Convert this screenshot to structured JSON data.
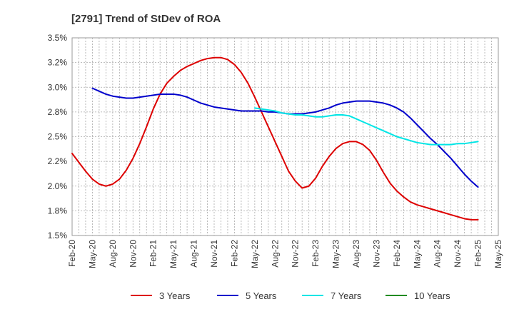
{
  "chart_data": {
    "type": "line",
    "title": "[2791]  Trend of StDev of ROA",
    "xlabel": "",
    "ylabel": "",
    "ylim": [
      1.5,
      3.5
    ],
    "yticks": [
      "3.5%",
      "3.2%",
      "3.0%",
      "2.8%",
      "2.5%",
      "2.2%",
      "2.0%",
      "1.8%",
      "1.5%"
    ],
    "ytick_values": [
      3.5,
      3.25,
      3.0,
      2.75,
      2.5,
      2.25,
      2.0,
      1.75,
      1.5
    ],
    "xticks": [
      "Feb-20",
      "May-20",
      "Aug-20",
      "Nov-20",
      "Feb-21",
      "May-21",
      "Aug-21",
      "Nov-21",
      "Feb-22",
      "May-22",
      "Aug-22",
      "Nov-22",
      "Feb-23",
      "May-23",
      "Aug-23",
      "Nov-23",
      "Feb-24",
      "May-24",
      "Aug-24",
      "Nov-24",
      "Feb-25",
      "May-25"
    ],
    "grid": true,
    "legend_position": "bottom",
    "series": [
      {
        "name": "3 Years",
        "color": "#dd0000",
        "x": [
          "Feb-20",
          "Mar-20",
          "Apr-20",
          "May-20",
          "Jun-20",
          "Jul-20",
          "Aug-20",
          "Sep-20",
          "Oct-20",
          "Nov-20",
          "Dec-20",
          "Jan-21",
          "Feb-21",
          "Mar-21",
          "Apr-21",
          "May-21",
          "Jun-21",
          "Jul-21",
          "Aug-21",
          "Sep-21",
          "Oct-21",
          "Nov-21",
          "Dec-21",
          "Jan-22",
          "Feb-22",
          "Mar-22",
          "Apr-22",
          "May-22",
          "Jun-22",
          "Jul-22",
          "Aug-22",
          "Sep-22",
          "Oct-22",
          "Nov-22",
          "Dec-22",
          "Jan-23",
          "Feb-23",
          "Mar-23",
          "Apr-23",
          "May-23",
          "Jun-23",
          "Jul-23",
          "Aug-23",
          "Sep-23",
          "Oct-23",
          "Nov-23",
          "Dec-23",
          "Jan-24",
          "Feb-24",
          "Mar-24",
          "Apr-24",
          "May-24",
          "Jun-24",
          "Jul-24",
          "Aug-24",
          "Sep-24",
          "Oct-24",
          "Nov-24",
          "Dec-24",
          "Jan-25",
          "Feb-25"
        ],
        "values": [
          2.33,
          2.24,
          2.15,
          2.07,
          2.02,
          2.0,
          2.02,
          2.07,
          2.16,
          2.28,
          2.43,
          2.6,
          2.78,
          2.93,
          3.04,
          3.11,
          3.17,
          3.21,
          3.24,
          3.27,
          3.29,
          3.3,
          3.3,
          3.28,
          3.23,
          3.15,
          3.04,
          2.9,
          2.75,
          2.6,
          2.45,
          2.3,
          2.15,
          2.05,
          1.98,
          2.0,
          2.08,
          2.2,
          2.3,
          2.38,
          2.43,
          2.45,
          2.45,
          2.42,
          2.36,
          2.26,
          2.14,
          2.03,
          1.95,
          1.89,
          1.84,
          1.81,
          1.79,
          1.77,
          1.75,
          1.73,
          1.71,
          1.69,
          1.67,
          1.66,
          1.66
        ]
      },
      {
        "name": "5 Years",
        "color": "#0000cc",
        "x": [
          "May-20",
          "Jun-20",
          "Jul-20",
          "Aug-20",
          "Sep-20",
          "Oct-20",
          "Nov-20",
          "Dec-20",
          "Jan-21",
          "Feb-21",
          "Mar-21",
          "Apr-21",
          "May-21",
          "Jun-21",
          "Jul-21",
          "Aug-21",
          "Sep-21",
          "Oct-21",
          "Nov-21",
          "Dec-21",
          "Jan-22",
          "Feb-22",
          "Mar-22",
          "Apr-22",
          "May-22",
          "Jun-22",
          "Jul-22",
          "Aug-22",
          "Sep-22",
          "Oct-22",
          "Nov-22",
          "Dec-22",
          "Jan-23",
          "Feb-23",
          "Mar-23",
          "Apr-23",
          "May-23",
          "Jun-23",
          "Jul-23",
          "Aug-23",
          "Sep-23",
          "Oct-23",
          "Nov-23",
          "Dec-23",
          "Jan-24",
          "Feb-24",
          "Mar-24",
          "Apr-24",
          "May-24",
          "Jun-24",
          "Jul-24",
          "Aug-24",
          "Sep-24",
          "Oct-24",
          "Nov-24",
          "Dec-24",
          "Jan-25",
          "Feb-25"
        ],
        "values": [
          2.99,
          2.96,
          2.93,
          2.91,
          2.9,
          2.89,
          2.89,
          2.9,
          2.91,
          2.92,
          2.93,
          2.93,
          2.93,
          2.92,
          2.9,
          2.87,
          2.84,
          2.82,
          2.8,
          2.79,
          2.78,
          2.77,
          2.76,
          2.76,
          2.76,
          2.76,
          2.75,
          2.75,
          2.74,
          2.73,
          2.73,
          2.73,
          2.74,
          2.75,
          2.77,
          2.79,
          2.82,
          2.84,
          2.85,
          2.86,
          2.86,
          2.86,
          2.85,
          2.84,
          2.82,
          2.79,
          2.75,
          2.69,
          2.62,
          2.55,
          2.48,
          2.42,
          2.35,
          2.28,
          2.2,
          2.12,
          2.05,
          1.99
        ]
      },
      {
        "name": "7 Years",
        "color": "#00e5e5",
        "x": [
          "May-22",
          "Jun-22",
          "Jul-22",
          "Aug-22",
          "Sep-22",
          "Oct-22",
          "Nov-22",
          "Dec-22",
          "Jan-23",
          "Feb-23",
          "Mar-23",
          "Apr-23",
          "May-23",
          "Jun-23",
          "Jul-23",
          "Aug-23",
          "Sep-23",
          "Oct-23",
          "Nov-23",
          "Dec-23",
          "Jan-24",
          "Feb-24",
          "Mar-24",
          "Apr-24",
          "May-24",
          "Jun-24",
          "Jul-24",
          "Aug-24",
          "Sep-24",
          "Oct-24",
          "Nov-24",
          "Dec-24",
          "Jan-25",
          "Feb-25"
        ],
        "values": [
          2.79,
          2.78,
          2.77,
          2.76,
          2.74,
          2.73,
          2.72,
          2.72,
          2.71,
          2.7,
          2.7,
          2.71,
          2.72,
          2.72,
          2.71,
          2.68,
          2.65,
          2.62,
          2.59,
          2.56,
          2.53,
          2.5,
          2.48,
          2.46,
          2.44,
          2.43,
          2.42,
          2.42,
          2.42,
          2.42,
          2.43,
          2.43,
          2.44,
          2.45
        ]
      },
      {
        "name": "10 Years",
        "color": "#228b22",
        "x": [],
        "values": []
      }
    ]
  }
}
